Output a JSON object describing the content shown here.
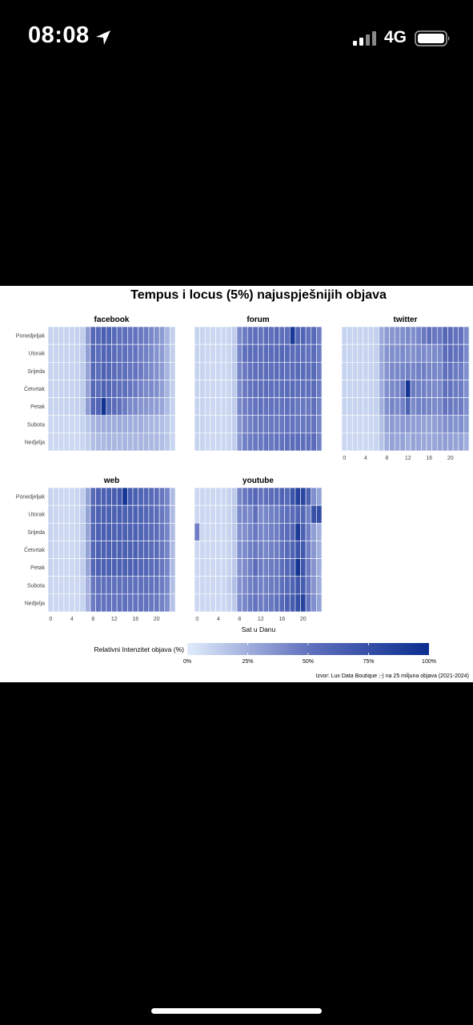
{
  "status_bar": {
    "time": "08:08",
    "network": "4G",
    "icons": [
      "location-arrow-icon",
      "cellular-signal-icon",
      "battery-icon"
    ]
  },
  "chart_data": {
    "type": "heatmap",
    "title": "Tempus i locus (5%) najuspješnijih objava",
    "xlabel": "Sat u Danu",
    "ylabel": "",
    "days": [
      "Ponedjeljak",
      "Utorak",
      "Srijeda",
      "Četvrtak",
      "Petak",
      "Subota",
      "Nedjelja"
    ],
    "hours": [
      0,
      1,
      2,
      3,
      4,
      5,
      6,
      7,
      8,
      9,
      10,
      11,
      12,
      13,
      14,
      15,
      16,
      17,
      18,
      19,
      20,
      21,
      22,
      23
    ],
    "x_ticks": [
      0,
      4,
      8,
      12,
      16,
      20
    ],
    "value_range": [
      0,
      100
    ],
    "colors": {
      "low": "#e0ecfb",
      "mid": "#6272be",
      "high": "#0a2d8f"
    },
    "panels": [
      {
        "name": "facebook",
        "values": [
          [
            10,
            10,
            10,
            10,
            10,
            11,
            12,
            33,
            58,
            56,
            64,
            60,
            56,
            52,
            52,
            50,
            50,
            47,
            46,
            41,
            38,
            33,
            22,
            12
          ],
          [
            10,
            10,
            10,
            10,
            10,
            11,
            13,
            32,
            58,
            53,
            60,
            58,
            55,
            52,
            52,
            50,
            50,
            45,
            44,
            40,
            36,
            33,
            22,
            12
          ],
          [
            10,
            10,
            10,
            10,
            10,
            11,
            13,
            30,
            58,
            53,
            62,
            58,
            55,
            52,
            52,
            49,
            50,
            47,
            43,
            40,
            37,
            33,
            22,
            12
          ],
          [
            10,
            10,
            10,
            10,
            10,
            11,
            13,
            31,
            58,
            53,
            62,
            58,
            55,
            52,
            52,
            49,
            47,
            43,
            40,
            40,
            38,
            32,
            22,
            12
          ],
          [
            10,
            10,
            10,
            10,
            10,
            11,
            12,
            33,
            58,
            60,
            96,
            56,
            55,
            52,
            46,
            40,
            40,
            36,
            35,
            33,
            32,
            29,
            20,
            11
          ],
          [
            8,
            8,
            8,
            8,
            8,
            8,
            10,
            15,
            22,
            24,
            26,
            26,
            26,
            27,
            26,
            26,
            25,
            26,
            23,
            22,
            21,
            19,
            15,
            9
          ],
          [
            8,
            8,
            8,
            8,
            8,
            8,
            9,
            12,
            18,
            20,
            21,
            22,
            22,
            22,
            22,
            22,
            22,
            22,
            22,
            21,
            21,
            19,
            15,
            9
          ]
        ]
      },
      {
        "name": "forum",
        "values": [
          [
            10,
            9,
            8,
            8,
            8,
            8,
            9,
            13,
            40,
            46,
            50,
            52,
            51,
            54,
            52,
            57,
            52,
            53,
            92,
            58,
            60,
            52,
            56,
            45
          ],
          [
            10,
            9,
            8,
            8,
            8,
            8,
            9,
            14,
            42,
            52,
            54,
            54,
            53,
            55,
            54,
            57,
            58,
            56,
            55,
            54,
            52,
            50,
            55,
            46
          ],
          [
            10,
            9,
            8,
            8,
            8,
            8,
            9,
            14,
            42,
            47,
            50,
            53,
            53,
            54,
            52,
            55,
            54,
            52,
            55,
            56,
            55,
            53,
            56,
            46
          ],
          [
            10,
            9,
            8,
            8,
            8,
            8,
            9,
            14,
            40,
            47,
            49,
            52,
            53,
            54,
            52,
            53,
            53,
            54,
            56,
            52,
            52,
            53,
            55,
            46
          ],
          [
            10,
            9,
            8,
            8,
            8,
            8,
            9,
            13,
            40,
            45,
            47,
            50,
            52,
            50,
            50,
            50,
            50,
            52,
            52,
            48,
            48,
            48,
            52,
            44
          ],
          [
            10,
            9,
            8,
            8,
            8,
            8,
            9,
            12,
            35,
            42,
            44,
            47,
            48,
            48,
            48,
            48,
            48,
            50,
            50,
            48,
            48,
            48,
            50,
            42
          ],
          [
            10,
            9,
            8,
            8,
            8,
            8,
            9,
            12,
            35,
            44,
            46,
            48,
            48,
            50,
            48,
            50,
            50,
            53,
            55,
            54,
            52,
            52,
            55,
            44
          ]
        ]
      },
      {
        "name": "twitter",
        "values": [
          [
            10,
            10,
            10,
            10,
            10,
            10,
            11,
            27,
            33,
            35,
            36,
            38,
            40,
            38,
            42,
            48,
            52,
            48,
            47,
            58,
            55,
            50,
            50,
            40
          ],
          [
            10,
            10,
            10,
            10,
            10,
            10,
            11,
            28,
            36,
            38,
            38,
            40,
            38,
            37,
            40,
            40,
            38,
            40,
            40,
            54,
            55,
            50,
            50,
            40
          ],
          [
            10,
            10,
            10,
            10,
            10,
            10,
            11,
            27,
            36,
            40,
            41,
            42,
            44,
            42,
            44,
            45,
            42,
            42,
            40,
            52,
            50,
            46,
            46,
            38
          ],
          [
            10,
            10,
            10,
            10,
            10,
            10,
            11,
            26,
            38,
            40,
            42,
            46,
            94,
            46,
            44,
            44,
            42,
            40,
            40,
            52,
            50,
            46,
            46,
            38
          ],
          [
            10,
            10,
            10,
            10,
            10,
            10,
            11,
            25,
            38,
            42,
            40,
            43,
            60,
            40,
            44,
            44,
            42,
            40,
            40,
            50,
            48,
            45,
            46,
            38
          ],
          [
            8,
            8,
            8,
            8,
            8,
            8,
            9,
            18,
            30,
            33,
            32,
            34,
            34,
            32,
            32,
            30,
            30,
            32,
            33,
            38,
            38,
            36,
            38,
            32
          ],
          [
            8,
            8,
            8,
            8,
            8,
            8,
            9,
            17,
            26,
            30,
            29,
            30,
            26,
            30,
            29,
            28,
            28,
            29,
            30,
            32,
            31,
            30,
            30,
            25
          ]
        ]
      },
      {
        "name": "web",
        "values": [
          [
            10,
            9,
            8,
            8,
            8,
            9,
            12,
            30,
            56,
            62,
            62,
            64,
            66,
            68,
            92,
            66,
            64,
            60,
            58,
            56,
            54,
            48,
            42,
            20
          ],
          [
            10,
            9,
            8,
            8,
            8,
            9,
            12,
            30,
            58,
            62,
            62,
            62,
            62,
            64,
            62,
            62,
            62,
            60,
            58,
            56,
            54,
            48,
            42,
            20
          ],
          [
            10,
            9,
            8,
            8,
            8,
            9,
            12,
            30,
            58,
            62,
            64,
            64,
            62,
            63,
            62,
            62,
            62,
            60,
            58,
            56,
            54,
            48,
            42,
            20
          ],
          [
            10,
            9,
            8,
            8,
            8,
            9,
            12,
            30,
            58,
            62,
            62,
            63,
            62,
            62,
            62,
            62,
            62,
            58,
            58,
            55,
            54,
            48,
            42,
            20
          ],
          [
            10,
            9,
            8,
            8,
            8,
            9,
            12,
            30,
            58,
            62,
            62,
            63,
            62,
            62,
            62,
            62,
            62,
            58,
            58,
            55,
            54,
            48,
            42,
            20
          ],
          [
            9,
            8,
            8,
            8,
            8,
            8,
            10,
            24,
            48,
            52,
            52,
            52,
            52,
            52,
            52,
            52,
            52,
            52,
            52,
            50,
            50,
            46,
            40,
            18
          ],
          [
            9,
            8,
            8,
            8,
            8,
            8,
            10,
            24,
            46,
            50,
            50,
            50,
            50,
            50,
            52,
            50,
            50,
            50,
            50,
            48,
            48,
            44,
            38,
            17
          ]
        ]
      },
      {
        "name": "youtube",
        "values": [
          [
            8,
            8,
            8,
            8,
            8,
            8,
            10,
            14,
            42,
            48,
            52,
            58,
            50,
            52,
            54,
            56,
            60,
            56,
            72,
            85,
            82,
            62,
            38,
            30
          ],
          [
            8,
            8,
            8,
            8,
            8,
            8,
            10,
            14,
            40,
            42,
            40,
            52,
            40,
            42,
            44,
            46,
            50,
            52,
            55,
            60,
            58,
            44,
            74,
            76
          ],
          [
            45,
            8,
            8,
            8,
            8,
            8,
            10,
            14,
            36,
            38,
            42,
            48,
            42,
            42,
            44,
            46,
            52,
            55,
            58,
            90,
            62,
            45,
            32,
            24
          ],
          [
            8,
            8,
            8,
            8,
            8,
            8,
            10,
            14,
            38,
            40,
            44,
            48,
            44,
            42,
            44,
            46,
            50,
            56,
            60,
            72,
            68,
            45,
            35,
            25
          ],
          [
            8,
            8,
            8,
            8,
            8,
            8,
            10,
            14,
            36,
            40,
            44,
            55,
            46,
            44,
            46,
            48,
            52,
            58,
            62,
            94,
            70,
            48,
            36,
            26
          ],
          [
            8,
            8,
            8,
            8,
            8,
            8,
            12,
            18,
            36,
            40,
            44,
            48,
            44,
            44,
            46,
            48,
            52,
            56,
            60,
            70,
            66,
            48,
            36,
            26
          ],
          [
            8,
            8,
            8,
            8,
            8,
            8,
            10,
            14,
            38,
            42,
            46,
            50,
            46,
            46,
            48,
            52,
            56,
            62,
            66,
            75,
            84,
            50,
            38,
            30
          ]
        ]
      }
    ],
    "legend": {
      "title": "Relativni Intenzitet objava (%)",
      "ticks": [
        "0%",
        "25%",
        "50%",
        "75%",
        "100%"
      ],
      "position": "bottom"
    },
    "caption": "Izvor: Lux Data Boutique ;-) na 25 miljuna objava (2021-2024)"
  }
}
